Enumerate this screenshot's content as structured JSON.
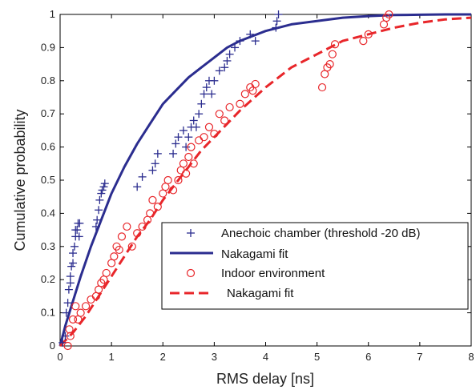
{
  "chart_data": {
    "type": "scatter",
    "title": "",
    "xlabel": "RMS delay [ns]",
    "ylabel": "Cumulative probability",
    "xlim": [
      0,
      8
    ],
    "ylim": [
      0,
      1
    ],
    "xticks": [
      "0",
      "1",
      "2",
      "3",
      "4",
      "5",
      "6",
      "7",
      "8"
    ],
    "yticks": [
      "0",
      "0.1",
      "0.2",
      "0.3",
      "0.4",
      "0.5",
      "0.6",
      "0.7",
      "0.8",
      "0.9",
      "1"
    ],
    "grid": false,
    "legend_position": "bottom-right",
    "series": [
      {
        "name": "Anechoic chamber (threshold -20 dB)",
        "kind": "points",
        "marker": "plus",
        "color": "#2b2d8f",
        "x": [
          0.05,
          0.1,
          0.12,
          0.15,
          0.17,
          0.2,
          0.2,
          0.22,
          0.25,
          0.25,
          0.28,
          0.3,
          0.3,
          0.33,
          0.35,
          0.37,
          0.38,
          0.7,
          0.72,
          0.75,
          0.77,
          0.8,
          0.82,
          0.85,
          0.87,
          1.5,
          1.6,
          1.8,
          1.85,
          1.9,
          2.2,
          2.25,
          2.3,
          2.4,
          2.45,
          2.5,
          2.55,
          2.6,
          2.65,
          2.7,
          2.75,
          2.8,
          2.85,
          2.9,
          2.95,
          3.0,
          3.1,
          3.2,
          3.25,
          3.3,
          3.4,
          3.5,
          3.7,
          3.8,
          4.2,
          4.22,
          4.25
        ],
        "y": [
          0.01,
          0.03,
          0.1,
          0.13,
          0.17,
          0.19,
          0.21,
          0.24,
          0.25,
          0.28,
          0.3,
          0.33,
          0.35,
          0.35,
          0.37,
          0.33,
          0.37,
          0.36,
          0.38,
          0.41,
          0.44,
          0.46,
          0.47,
          0.48,
          0.49,
          0.48,
          0.51,
          0.53,
          0.55,
          0.58,
          0.58,
          0.61,
          0.63,
          0.65,
          0.6,
          0.63,
          0.66,
          0.68,
          0.66,
          0.7,
          0.73,
          0.76,
          0.78,
          0.8,
          0.76,
          0.8,
          0.83,
          0.84,
          0.86,
          0.88,
          0.9,
          0.92,
          0.94,
          0.92,
          0.96,
          0.98,
          1.0
        ]
      },
      {
        "name": "Nakagami fit",
        "kind": "line",
        "style": "solid",
        "color": "#2b2d8f",
        "x": [
          0,
          0.1,
          0.2,
          0.4,
          0.6,
          0.8,
          1.0,
          1.25,
          1.5,
          1.75,
          2.0,
          2.25,
          2.5,
          2.75,
          3.0,
          3.25,
          3.5,
          3.75,
          4.0,
          4.5,
          5.0,
          5.5,
          6.0,
          6.5,
          7.0,
          7.5,
          8.0
        ],
        "y": [
          0,
          0.06,
          0.11,
          0.21,
          0.3,
          0.38,
          0.46,
          0.54,
          0.61,
          0.67,
          0.73,
          0.77,
          0.81,
          0.84,
          0.87,
          0.9,
          0.92,
          0.935,
          0.95,
          0.97,
          0.98,
          0.99,
          0.995,
          0.998,
          0.999,
          1.0,
          1.0
        ]
      },
      {
        "name": "Indoor environment",
        "kind": "points",
        "marker": "circle",
        "color": "#e8262a",
        "x": [
          0.15,
          0.18,
          0.2,
          0.25,
          0.3,
          0.35,
          0.4,
          0.5,
          0.6,
          0.7,
          0.75,
          0.8,
          0.85,
          0.9,
          1.0,
          1.05,
          1.1,
          1.15,
          1.2,
          1.3,
          1.4,
          1.5,
          1.6,
          1.7,
          1.75,
          1.8,
          1.9,
          2.0,
          2.05,
          2.1,
          2.2,
          2.3,
          2.35,
          2.4,
          2.45,
          2.5,
          2.55,
          2.6,
          2.7,
          2.8,
          2.9,
          3.0,
          3.1,
          3.2,
          3.3,
          3.5,
          3.6,
          3.7,
          3.75,
          3.8,
          5.1,
          5.15,
          5.2,
          5.25,
          5.3,
          5.35,
          5.9,
          6.0,
          6.3,
          6.35,
          6.4
        ],
        "y": [
          0.0,
          0.05,
          0.03,
          0.08,
          0.12,
          0.08,
          0.1,
          0.12,
          0.14,
          0.15,
          0.17,
          0.19,
          0.2,
          0.22,
          0.25,
          0.27,
          0.3,
          0.29,
          0.33,
          0.36,
          0.3,
          0.34,
          0.36,
          0.38,
          0.4,
          0.44,
          0.42,
          0.46,
          0.48,
          0.5,
          0.47,
          0.5,
          0.53,
          0.55,
          0.52,
          0.57,
          0.6,
          0.55,
          0.62,
          0.63,
          0.66,
          0.64,
          0.7,
          0.68,
          0.72,
          0.73,
          0.76,
          0.78,
          0.77,
          0.79,
          0.78,
          0.82,
          0.84,
          0.85,
          0.88,
          0.91,
          0.92,
          0.94,
          0.97,
          0.99,
          1.0
        ]
      },
      {
        "name": "Nakagami fit",
        "kind": "line",
        "style": "dashed",
        "color": "#e8262a",
        "x": [
          0,
          0.25,
          0.5,
          0.75,
          1.0,
          1.25,
          1.5,
          1.75,
          2.0,
          2.25,
          2.5,
          2.75,
          3.0,
          3.5,
          4.0,
          4.5,
          5.0,
          5.5,
          6.0,
          6.5,
          7.0,
          7.5,
          8.0
        ],
        "y": [
          0,
          0.04,
          0.09,
          0.15,
          0.21,
          0.27,
          0.33,
          0.38,
          0.44,
          0.49,
          0.54,
          0.59,
          0.63,
          0.71,
          0.78,
          0.84,
          0.88,
          0.92,
          0.94,
          0.96,
          0.975,
          0.985,
          0.99
        ]
      }
    ]
  }
}
